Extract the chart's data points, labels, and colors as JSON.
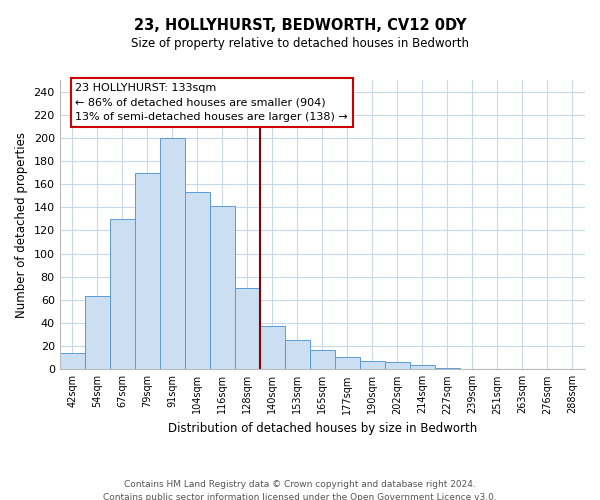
{
  "title": "23, HOLLYHURST, BEDWORTH, CV12 0DY",
  "subtitle": "Size of property relative to detached houses in Bedworth",
  "xlabel": "Distribution of detached houses by size in Bedworth",
  "ylabel": "Number of detached properties",
  "bar_labels": [
    "42sqm",
    "54sqm",
    "67sqm",
    "79sqm",
    "91sqm",
    "104sqm",
    "116sqm",
    "128sqm",
    "140sqm",
    "153sqm",
    "165sqm",
    "177sqm",
    "190sqm",
    "202sqm",
    "214sqm",
    "227sqm",
    "239sqm",
    "251sqm",
    "263sqm",
    "276sqm",
    "288sqm"
  ],
  "bar_values": [
    14,
    63,
    130,
    170,
    200,
    153,
    141,
    70,
    37,
    25,
    17,
    11,
    7,
    6,
    4,
    1,
    0,
    0,
    0,
    0,
    0
  ],
  "bar_color": "#ccdff2",
  "bar_edge_color": "#5b9bd5",
  "ylim": [
    0,
    250
  ],
  "yticks": [
    0,
    20,
    40,
    60,
    80,
    100,
    120,
    140,
    160,
    180,
    200,
    220,
    240
  ],
  "vline_x": 7.5,
  "vline_color": "#8b0000",
  "annotation_title": "23 HOLLYHURST: 133sqm",
  "annotation_line1": "← 86% of detached houses are smaller (904)",
  "annotation_line2": "13% of semi-detached houses are larger (138) →",
  "annotation_box_color": "#ffffff",
  "annotation_box_edge": "#cc0000",
  "footer_line1": "Contains HM Land Registry data © Crown copyright and database right 2024.",
  "footer_line2": "Contains public sector information licensed under the Open Government Licence v3.0.",
  "background_color": "#ffffff",
  "grid_color": "#c8d8ea"
}
